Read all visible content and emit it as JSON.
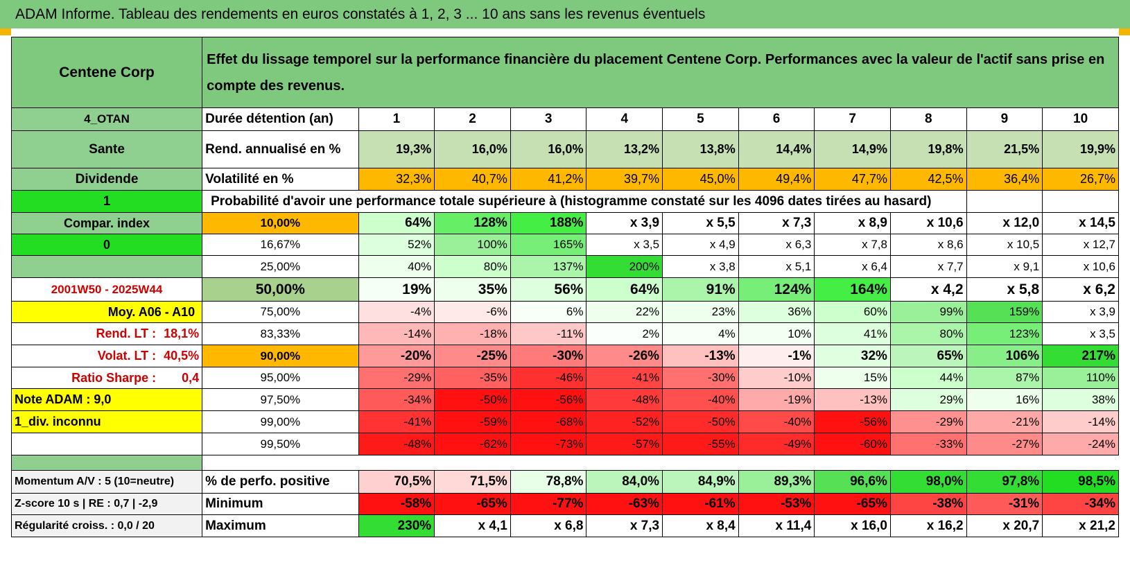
{
  "title": "ADAM Informe. Tableau des rendements en euros constatés à 1, 2, 3 ... 10 ans sans les revenus éventuels",
  "header": {
    "name": "Centene Corp",
    "description": "Effet du lissage temporel sur la performance financière du placement Centene Corp. Performances avec la valeur de l'actif sans prise en compte des revenus."
  },
  "left_labels": {
    "code": "4_OTAN",
    "sector": "Sante",
    "type": "Dividende",
    "flag1": "1",
    "compar": "Compar. index",
    "flag2": "0",
    "period": "2001W50 - 2025W44",
    "moy": "Moy. A06 - A10",
    "rend_lt_label": "Rend. LT :",
    "rend_lt_value": "18,1%",
    "volat_lt_label": "Volat. LT :",
    "volat_lt_value": "40,5%",
    "sharpe_label": "Ratio Sharpe :",
    "sharpe_value": "0,4",
    "note": "Note ADAM : 9,0",
    "div": "1_div. inconnu",
    "momentum": "Momentum A/V : 5 (10=neutre)",
    "zscore": "Z-score 10 s | RE : 0,7 | -2,9",
    "regularite": "Régularité croiss. : 0,0 / 20"
  },
  "rows_top": {
    "duree_label": "Durée détention (an)",
    "years": [
      "1",
      "2",
      "3",
      "4",
      "5",
      "6",
      "7",
      "8",
      "9",
      "10"
    ],
    "rend_label": "Rend. annualisé en %",
    "rend": [
      "19,3%",
      "16,0%",
      "16,0%",
      "13,2%",
      "13,8%",
      "14,4%",
      "14,9%",
      "19,8%",
      "21,5%",
      "19,9%"
    ],
    "vol_label": "Volatilité en %",
    "vol": [
      "32,3%",
      "40,7%",
      "41,2%",
      "39,7%",
      "45,0%",
      "49,4%",
      "47,7%",
      "42,5%",
      "36,4%",
      "26,7%"
    ],
    "proba_label": "Probabilité d'avoir une performance totale supérieure à (histogramme constaté sur les 4096 dates tirées au hasard)"
  },
  "prob_rows": [
    {
      "p": "10,00%",
      "v": [
        "64%",
        "128%",
        "188%",
        "x 3,9",
        "x 5,5",
        "x 7,3",
        "x 8,9",
        "x 10,6",
        "x 12,0",
        "x 14,5"
      ]
    },
    {
      "p": "16,67%",
      "v": [
        "52%",
        "100%",
        "165%",
        "x 3,5",
        "x 4,9",
        "x 6,3",
        "x 7,8",
        "x 8,6",
        "x 10,5",
        "x 12,7"
      ]
    },
    {
      "p": "25,00%",
      "v": [
        "40%",
        "80%",
        "137%",
        "200%",
        "x 3,8",
        "x 5,1",
        "x 6,4",
        "x 7,7",
        "x 9,1",
        "x 10,6"
      ]
    },
    {
      "p": "50,00%",
      "v": [
        "19%",
        "35%",
        "56%",
        "64%",
        "91%",
        "124%",
        "164%",
        "x 4,2",
        "x 5,8",
        "x 6,2"
      ]
    },
    {
      "p": "75,00%",
      "v": [
        "-4%",
        "-6%",
        "6%",
        "22%",
        "23%",
        "36%",
        "60%",
        "99%",
        "159%",
        "x 3,9"
      ]
    },
    {
      "p": "83,33%",
      "v": [
        "-14%",
        "-18%",
        "-11%",
        "2%",
        "4%",
        "10%",
        "41%",
        "80%",
        "123%",
        "x 3,5"
      ]
    },
    {
      "p": "90,00%",
      "v": [
        "-20%",
        "-25%",
        "-30%",
        "-26%",
        "-13%",
        "-1%",
        "32%",
        "65%",
        "106%",
        "217%"
      ]
    },
    {
      "p": "95,00%",
      "v": [
        "-29%",
        "-35%",
        "-46%",
        "-41%",
        "-30%",
        "-10%",
        "15%",
        "44%",
        "87%",
        "110%"
      ]
    },
    {
      "p": "97,50%",
      "v": [
        "-34%",
        "-50%",
        "-56%",
        "-48%",
        "-40%",
        "-19%",
        "-13%",
        "29%",
        "16%",
        "38%"
      ]
    },
    {
      "p": "99,00%",
      "v": [
        "-41%",
        "-59%",
        "-68%",
        "-52%",
        "-50%",
        "-40%",
        "-56%",
        "-29%",
        "-21%",
        "-14%"
      ]
    },
    {
      "p": "99,50%",
      "v": [
        "-48%",
        "-62%",
        "-73%",
        "-57%",
        "-55%",
        "-49%",
        "-60%",
        "-33%",
        "-27%",
        "-24%"
      ]
    }
  ],
  "rows_bottom": {
    "pos_label": "% de perfo. positive",
    "pos": [
      "70,5%",
      "71,5%",
      "78,8%",
      "84,0%",
      "84,9%",
      "89,3%",
      "96,6%",
      "98,0%",
      "97,8%",
      "98,5%"
    ],
    "min_label": "Minimum",
    "min": [
      "-58%",
      "-65%",
      "-77%",
      "-63%",
      "-61%",
      "-53%",
      "-65%",
      "-38%",
      "-31%",
      "-34%"
    ],
    "max_label": "Maximum",
    "max": [
      "230%",
      "x 4,1",
      "x 6,8",
      "x 7,3",
      "x 8,4",
      "x 11,4",
      "x 16,0",
      "x 16,2",
      "x 20,7",
      "x 21,2"
    ]
  },
  "colors": {
    "header_green": "#7fc97f",
    "label_green": "#8fcf8f",
    "bright_green": "#22dd22",
    "orange": "#ffb800",
    "yellow": "#ffff00",
    "red_text": "#d00000"
  },
  "cell_colors": {
    "rend": [
      "#c6e0b4",
      "#c6e0b4",
      "#c6e0b4",
      "#c6e0b4",
      "#c6e0b4",
      "#c6e0b4",
      "#c6e0b4",
      "#c6e0b4",
      "#c6e0b4",
      "#c6e0b4"
    ],
    "vol": [
      "#ffb800",
      "#ffb800",
      "#ffb800",
      "#ffb800",
      "#ffb800",
      "#ffb800",
      "#ffb800",
      "#ffb800",
      "#ffb800",
      "#ffb800"
    ],
    "prob": [
      [
        "#ccffcc",
        "#66ee66",
        "#44ee44",
        "#ffffff",
        "#ffffff",
        "#ffffff",
        "#ffffff",
        "#ffffff",
        "#ffffff",
        "#ffffff"
      ],
      [
        "#ddffdd",
        "#99f099",
        "#77ee77",
        "#ffffff",
        "#ffffff",
        "#ffffff",
        "#ffffff",
        "#ffffff",
        "#ffffff",
        "#ffffff"
      ],
      [
        "#eeffee",
        "#ccffcc",
        "#aaf5aa",
        "#33dd33",
        "#ffffff",
        "#ffffff",
        "#ffffff",
        "#ffffff",
        "#ffffff",
        "#ffffff"
      ],
      [
        "#f5fff5",
        "#eeffee",
        "#ddffdd",
        "#ccffcc",
        "#aaf5aa",
        "#77ee77",
        "#44ee44",
        "#ffffff",
        "#ffffff",
        "#ffffff"
      ],
      [
        "#ffe0e0",
        "#ffeaea",
        "#f8fff8",
        "#eeffee",
        "#eeffee",
        "#ddffdd",
        "#ccffcc",
        "#99f099",
        "#55e055",
        "#ffffff"
      ],
      [
        "#ffb8b8",
        "#ffb0b0",
        "#ffc8c8",
        "#fbfffb",
        "#f8fff8",
        "#f2fff2",
        "#ddffdd",
        "#aaf5aa",
        "#77ee77",
        "#ffffff"
      ],
      [
        "#ff9a9a",
        "#ff8a8a",
        "#ff7a7a",
        "#ff8a8a",
        "#ffc0c0",
        "#ffeeee",
        "#e0ffe0",
        "#bbf5bb",
        "#88ee88",
        "#33dd33"
      ],
      [
        "#ff7070",
        "#ff6060",
        "#ff3030",
        "#ff4444",
        "#ff7070",
        "#ffcccc",
        "#eeffee",
        "#ccffcc",
        "#aaf5aa",
        "#99f099"
      ],
      [
        "#ff5a5a",
        "#ff1111",
        "#ff1111",
        "#ff3a3a",
        "#ff5050",
        "#ffaaaa",
        "#ffc0c0",
        "#ddffdd",
        "#eeffee",
        "#ddffdd"
      ],
      [
        "#ff3333",
        "#ff1111",
        "#ff1111",
        "#ff2222",
        "#ff2a2a",
        "#ff4a4a",
        "#ff1111",
        "#ff9090",
        "#ffa8a8",
        "#ffcccc"
      ],
      [
        "#ff1a1a",
        "#ff1111",
        "#ff1111",
        "#ff1a1a",
        "#ff1a1a",
        "#ff2a2a",
        "#ff1111",
        "#ff7070",
        "#ff8a8a",
        "#ffaaaa"
      ]
    ],
    "pos": [
      "#ffd0d0",
      "#ffd8d8",
      "#e8ffe8",
      "#bbf5bb",
      "#bbf5bb",
      "#99f099",
      "#55e055",
      "#33dd33",
      "#33dd33",
      "#22dd22"
    ],
    "min": [
      "#ff1111",
      "#ff1111",
      "#ff1111",
      "#ff1111",
      "#ff1111",
      "#ff1111",
      "#ff1111",
      "#ff4444",
      "#ff5a5a",
      "#ff4444"
    ],
    "max": [
      "#33dd33",
      "#ffffff",
      "#ffffff",
      "#ffffff",
      "#ffffff",
      "#ffffff",
      "#ffffff",
      "#ffffff",
      "#ffffff",
      "#ffffff"
    ]
  }
}
